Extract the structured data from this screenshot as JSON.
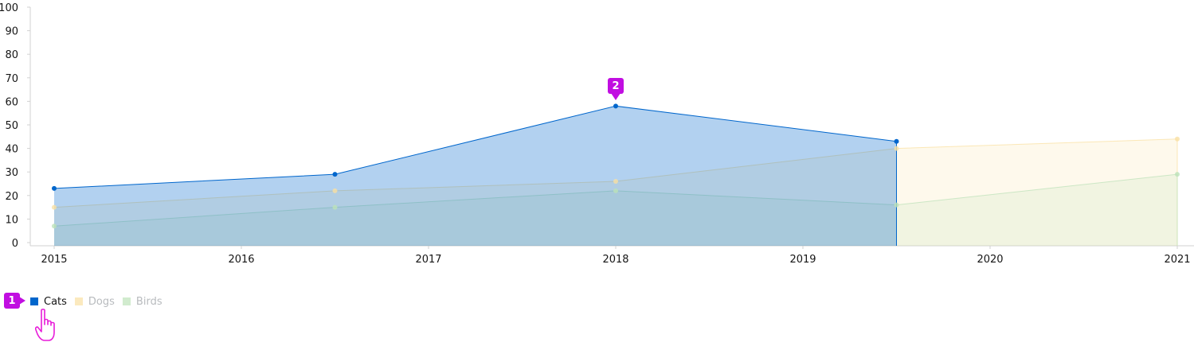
{
  "chart_data": {
    "type": "area",
    "title": "",
    "xlabel": "",
    "ylabel": "",
    "x_ticks": [
      "2015",
      "2016",
      "2017",
      "2018",
      "2019",
      "2020",
      "2021"
    ],
    "xlim": [
      2015,
      2021
    ],
    "y_ticks": [
      "0",
      "10",
      "20",
      "30",
      "40",
      "50",
      "60",
      "70",
      "80",
      "90",
      "100"
    ],
    "ylim": [
      0,
      100
    ],
    "grid": false,
    "legend_position": "bottom-left",
    "series": [
      {
        "name": "Cats",
        "color": "#0066cc",
        "highlighted": true,
        "points": [
          [
            2015.0,
            23
          ],
          [
            2016.5,
            29
          ],
          [
            2018.0,
            58
          ],
          [
            2019.5,
            43
          ]
        ]
      },
      {
        "name": "Dogs",
        "color": "#f9e0a2",
        "highlighted": false,
        "points": [
          [
            2015.0,
            15
          ],
          [
            2016.5,
            22
          ],
          [
            2018.0,
            26
          ],
          [
            2019.5,
            40
          ],
          [
            2021.0,
            44
          ]
        ]
      },
      {
        "name": "Birds",
        "color": "#bde2b9",
        "highlighted": false,
        "points": [
          [
            2015.0,
            7
          ],
          [
            2016.5,
            15
          ],
          [
            2018.0,
            22
          ],
          [
            2019.5,
            16
          ],
          [
            2021.0,
            29
          ]
        ]
      }
    ]
  },
  "annotations": [
    {
      "label": "1",
      "color": "#c10ee1",
      "target": "legend item Cats"
    },
    {
      "label": "2",
      "color": "#c10ee1",
      "target": "Cats data point 2018"
    }
  ],
  "cursor_icon": "hand-pointer-icon"
}
